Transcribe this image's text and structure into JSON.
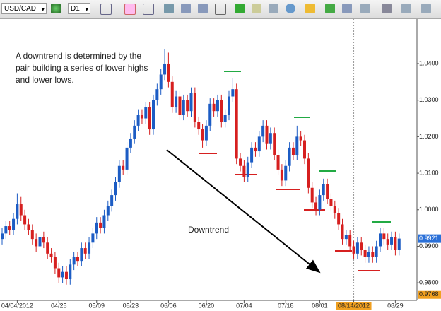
{
  "toolbar": {
    "symbol": "USD/CAD",
    "timeframe": "D1"
  },
  "chart_data": {
    "type": "candlestick",
    "annotation_lines": [
      "A downtrend is determined by the",
      "pair building a series of lower highs",
      "and lower lows."
    ],
    "trend_label": "Downtrend",
    "categories": [
      null,
      null,
      null,
      null,
      "04/04/2012",
      null,
      null,
      null,
      null,
      null,
      null,
      null,
      null,
      null,
      null,
      "04/25",
      null,
      null,
      null,
      null,
      null,
      null,
      null,
      null,
      null,
      "05/09",
      null,
      null,
      null,
      null,
      null,
      null,
      null,
      null,
      "05/23",
      null,
      null,
      null,
      null,
      null,
      null,
      null,
      null,
      null,
      "06/06",
      null,
      null,
      null,
      null,
      null,
      null,
      null,
      null,
      null,
      "06/20",
      null,
      null,
      null,
      null,
      null,
      null,
      null,
      null,
      null,
      "07/04",
      null,
      null,
      null,
      null,
      null,
      null,
      null,
      null,
      null,
      null,
      "07/18",
      null,
      null,
      null,
      null,
      null,
      null,
      null,
      null,
      "08/01",
      null,
      null,
      null,
      null,
      null,
      null,
      null,
      null,
      "08/14/2012",
      null,
      null,
      null,
      null,
      null,
      null,
      null,
      null,
      null,
      null,
      "08/29",
      null
    ],
    "open": [
      0.992,
      0.9935,
      0.9955,
      0.9945,
      0.9975,
      1.0015,
      0.9985,
      0.996,
      0.9945,
      0.992,
      0.99,
      0.9925,
      0.991,
      0.988,
      0.987,
      0.984,
      0.9815,
      0.983,
      0.981,
      0.985,
      0.987,
      0.986,
      0.9895,
      0.988,
      0.991,
      0.9935,
      0.9965,
      0.995,
      0.9985,
      1.001,
      1.004,
      1.0075,
      1.012,
      1.011,
      1.017,
      1.0195,
      1.023,
      1.026,
      1.025,
      1.028,
      1.022,
      1.03,
      1.033,
      1.037,
      1.04,
      1.035,
      1.028,
      1.031,
      1.026,
      1.03,
      1.027,
      1.032,
      1.024,
      1.022,
      1.019,
      1.023,
      1.029,
      1.027,
      1.03,
      1.024,
      1.026,
      1.031,
      1.033,
      1.014,
      1.012,
      1.009,
      1.013,
      1.017,
      1.016,
      1.02,
      1.023,
      1.018,
      1.021,
      1.015,
      1.011,
      1.008,
      1.012,
      1.017,
      1.015,
      1.02,
      1.019,
      1.014,
      1.006,
      1.002,
      1.0,
      1.004,
      1.007,
      1.003,
      1.001,
      0.999,
      0.996,
      0.992,
      0.993,
      0.99,
      0.988,
      0.991,
      0.989,
      0.987,
      0.9885,
      0.987,
      0.99,
      0.9935,
      0.992,
      0.9905,
      0.9925,
      0.989
    ],
    "high": [
      0.995,
      0.997,
      0.997,
      0.999,
      1.0045,
      1.0035,
      1.0,
      0.9975,
      0.996,
      0.9935,
      0.994,
      0.994,
      0.9925,
      0.9895,
      0.9885,
      0.9855,
      0.9845,
      0.9845,
      0.9865,
      0.9885,
      0.9885,
      0.991,
      0.991,
      0.9925,
      0.995,
      0.998,
      0.998,
      1.0,
      1.0025,
      1.0055,
      1.009,
      1.0135,
      1.0135,
      1.0185,
      1.021,
      1.0245,
      1.0275,
      1.0275,
      1.0295,
      1.0295,
      1.0315,
      1.0345,
      1.0385,
      1.044,
      1.043,
      1.0365,
      1.0325,
      1.0325,
      1.0315,
      1.0315,
      1.0335,
      1.0335,
      1.0255,
      1.0235,
      1.0245,
      1.0305,
      1.0305,
      1.0315,
      1.0315,
      1.0275,
      1.0325,
      1.036,
      1.0345,
      1.0155,
      1.0135,
      1.0145,
      1.0185,
      1.0185,
      1.0215,
      1.0245,
      1.0245,
      1.0225,
      1.0225,
      1.0165,
      1.0125,
      1.0135,
      1.0185,
      1.0185,
      1.023,
      1.0215,
      1.0205,
      1.0155,
      1.0075,
      1.0035,
      1.0055,
      1.0085,
      1.0085,
      1.0045,
      1.0025,
      1.0005,
      0.9975,
      0.9945,
      0.9945,
      0.9915,
      0.9925,
      0.9925,
      0.9905,
      0.99,
      0.99,
      0.9915,
      0.995,
      0.995,
      0.9935,
      0.994,
      0.994,
      0.9935
    ],
    "low": [
      0.9905,
      0.992,
      0.993,
      0.993,
      0.996,
      0.997,
      0.9945,
      0.993,
      0.9905,
      0.9885,
      0.9885,
      0.9895,
      0.9865,
      0.9855,
      0.9825,
      0.98,
      0.98,
      0.9795,
      0.9795,
      0.9835,
      0.9845,
      0.9845,
      0.9865,
      0.9865,
      0.9895,
      0.992,
      0.9935,
      0.9935,
      0.997,
      0.9995,
      1.0025,
      1.006,
      1.0095,
      1.0095,
      1.0155,
      1.018,
      1.0215,
      1.0235,
      1.0235,
      1.0205,
      1.0205,
      1.0285,
      1.0315,
      1.0355,
      1.0335,
      1.0265,
      1.0265,
      1.0245,
      1.0245,
      1.0255,
      1.0255,
      1.0225,
      1.0205,
      1.017,
      1.0175,
      1.0215,
      1.0255,
      1.0255,
      1.0225,
      1.0225,
      1.0245,
      1.0295,
      1.0125,
      1.0105,
      1.0075,
      1.0075,
      1.0115,
      1.0145,
      1.0145,
      1.0185,
      1.0165,
      1.0165,
      1.0135,
      1.0095,
      1.0065,
      1.0065,
      1.0105,
      1.0135,
      1.0135,
      1.0175,
      1.0125,
      1.0045,
      1.0005,
      0.9985,
      0.9985,
      1.0025,
      1.0015,
      0.9995,
      0.9975,
      0.9945,
      0.9905,
      0.9905,
      0.9885,
      0.9865,
      0.9865,
      0.9875,
      0.9855,
      0.9855,
      0.9855,
      0.9855,
      0.9885,
      0.9905,
      0.989,
      0.989,
      0.9875,
      0.9875
    ],
    "close": [
      0.9935,
      0.9955,
      0.9945,
      0.9975,
      1.0015,
      0.9985,
      0.996,
      0.9945,
      0.992,
      0.99,
      0.9925,
      0.991,
      0.988,
      0.987,
      0.984,
      0.9815,
      0.983,
      0.981,
      0.985,
      0.987,
      0.986,
      0.9895,
      0.988,
      0.991,
      0.9935,
      0.9965,
      0.995,
      0.9985,
      1.001,
      1.004,
      1.0075,
      1.012,
      1.011,
      1.017,
      1.0195,
      1.023,
      1.026,
      1.025,
      1.028,
      1.022,
      1.03,
      1.033,
      1.037,
      1.04,
      1.035,
      1.028,
      1.031,
      1.026,
      1.03,
      1.027,
      1.032,
      1.024,
      1.022,
      1.019,
      1.023,
      1.029,
      1.027,
      1.03,
      1.024,
      1.026,
      1.031,
      1.033,
      1.014,
      1.012,
      1.009,
      1.013,
      1.017,
      1.016,
      1.02,
      1.023,
      1.018,
      1.021,
      1.015,
      1.011,
      1.008,
      1.012,
      1.017,
      1.015,
      1.02,
      1.019,
      1.014,
      1.006,
      1.002,
      1.0,
      1.004,
      1.007,
      1.003,
      1.001,
      0.999,
      0.996,
      0.992,
      0.993,
      0.99,
      0.988,
      0.991,
      0.989,
      0.987,
      0.9885,
      0.987,
      0.99,
      0.9935,
      0.992,
      0.9905,
      0.9925,
      0.989,
      0.9921
    ],
    "up_color": "#1c5cc4",
    "down_color": "#d61f1f",
    "ylim": [
      0.9752,
      1.0516
    ],
    "yticks": [
      {
        "value": 0.98,
        "label": "0.9800"
      },
      {
        "value": 0.99,
        "label": "0.9900"
      },
      {
        "value": 1.0,
        "label": "1.0000"
      },
      {
        "value": 1.01,
        "label": "1.0100"
      },
      {
        "value": 1.02,
        "label": "1.0200"
      },
      {
        "value": 1.03,
        "label": "1.0300"
      },
      {
        "value": 1.04,
        "label": "1.0400"
      }
    ],
    "grid": false,
    "last_price": 0.9921,
    "crosshair": {
      "y": 0.9768,
      "x": "08/14/2012"
    }
  }
}
